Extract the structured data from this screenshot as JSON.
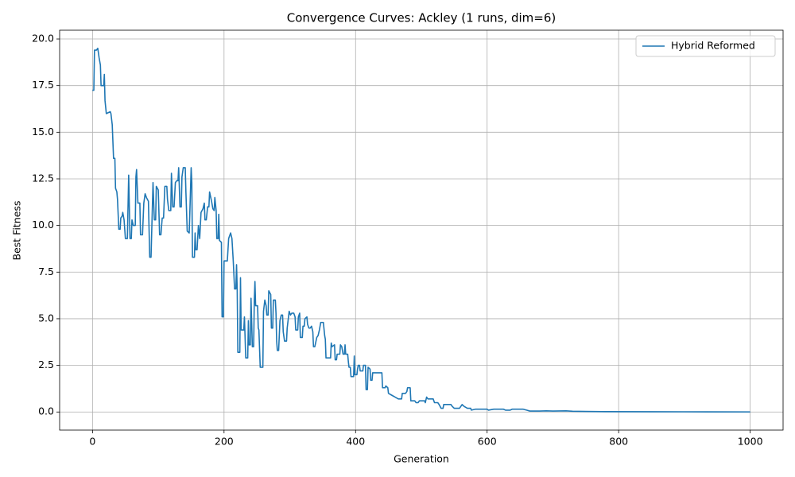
{
  "chart_data": {
    "type": "line",
    "title": "Convergence Curves: Ackley (1 runs, dim=6)",
    "xlabel": "Generation",
    "ylabel": "Best Fitness",
    "x": [
      0,
      2,
      3,
      6,
      8,
      10,
      12,
      13,
      17,
      18,
      19,
      21,
      27,
      28,
      30,
      32,
      34,
      35,
      37,
      38,
      40,
      42,
      43,
      45,
      46,
      48,
      50,
      53,
      55,
      57,
      59,
      60,
      62,
      65,
      66,
      67,
      69,
      72,
      73,
      76,
      78,
      80,
      82,
      85,
      87,
      89,
      92,
      94,
      96,
      97,
      100,
      102,
      104,
      106,
      108,
      110,
      113,
      114,
      116,
      119,
      120,
      122,
      124,
      126,
      128,
      130,
      131,
      133,
      135,
      136,
      138,
      141,
      142,
      144,
      147,
      148,
      150,
      151,
      152,
      155,
      156,
      157,
      159,
      161,
      163,
      165,
      168,
      170,
      171,
      173,
      175,
      177,
      178,
      181,
      183,
      185,
      186,
      188,
      189,
      191,
      192,
      193,
      196,
      197,
      199,
      200,
      205,
      207,
      210,
      212,
      214,
      216,
      218,
      219,
      220,
      221,
      224,
      225,
      226,
      230,
      231,
      233,
      236,
      237,
      238,
      240,
      241,
      243,
      245,
      246,
      247,
      248,
      251,
      252,
      253,
      254,
      255,
      259,
      260,
      262,
      264,
      265,
      267,
      268,
      271,
      272,
      274,
      275,
      278,
      279,
      280,
      281,
      283,
      285,
      287,
      289,
      290,
      292,
      295,
      296,
      299,
      301,
      303,
      306,
      308,
      309,
      312,
      313,
      315,
      316,
      319,
      320,
      322,
      323,
      326,
      327,
      329,
      331,
      333,
      335,
      336,
      338,
      341,
      343,
      345,
      347,
      351,
      353,
      354,
      355,
      362,
      363,
      364,
      368,
      369,
      371,
      372,
      376,
      377,
      379,
      381,
      383,
      384,
      385,
      388,
      389,
      390,
      392,
      393,
      397,
      398,
      399,
      402,
      403,
      404,
      406,
      407,
      411,
      412,
      415,
      416,
      418,
      419,
      422,
      423,
      425,
      426,
      440,
      441,
      445,
      446,
      449,
      450,
      455,
      460,
      465,
      470,
      471,
      476,
      478,
      479,
      483,
      484,
      490,
      492,
      495,
      497,
      505,
      506,
      508,
      510,
      518,
      520,
      525,
      527,
      530,
      533,
      534,
      545,
      547,
      550,
      558,
      560,
      562,
      565,
      570,
      575,
      576,
      582,
      600,
      602,
      610,
      625,
      628,
      635,
      638,
      655,
      660,
      665,
      680,
      690,
      700,
      720,
      730,
      750,
      780,
      850,
      900,
      1000
    ],
    "series": [
      {
        "name": "Hybrid Reformed",
        "color": "#1f77b4",
        "values": [
          17.25,
          17.25,
          19.4,
          19.4,
          19.5,
          19.0,
          18.6,
          17.5,
          17.5,
          18.1,
          16.7,
          16.0,
          16.1,
          16.0,
          15.4,
          13.6,
          13.6,
          12.0,
          11.8,
          11.4,
          9.8,
          9.8,
          10.4,
          10.5,
          10.7,
          10.3,
          9.3,
          9.3,
          12.7,
          9.3,
          9.3,
          10.3,
          10.0,
          10.0,
          12.6,
          13.0,
          11.2,
          11.2,
          9.5,
          9.5,
          11.2,
          11.7,
          11.5,
          11.3,
          8.3,
          8.3,
          12.3,
          10.3,
          10.3,
          12.1,
          11.9,
          9.5,
          9.5,
          10.4,
          10.4,
          12.1,
          12.1,
          11.4,
          10.8,
          10.8,
          12.8,
          11.0,
          11.0,
          12.3,
          12.4,
          12.4,
          13.1,
          11.0,
          11.0,
          12.6,
          13.1,
          13.1,
          11.8,
          9.7,
          9.6,
          10.7,
          13.1,
          12.3,
          8.3,
          8.3,
          9.6,
          8.7,
          8.7,
          10.0,
          9.3,
          10.7,
          10.9,
          11.2,
          10.3,
          10.3,
          11.0,
          11.0,
          11.8,
          11.3,
          10.9,
          10.8,
          11.5,
          10.8,
          9.3,
          9.3,
          10.6,
          9.2,
          9.1,
          5.1,
          5.1,
          8.1,
          8.1,
          9.3,
          9.6,
          9.3,
          8.1,
          6.6,
          6.6,
          7.9,
          6.6,
          3.2,
          3.2,
          7.2,
          4.4,
          4.4,
          5.1,
          2.9,
          2.9,
          4.9,
          3.6,
          3.6,
          6.1,
          3.5,
          3.5,
          6.0,
          7.0,
          5.7,
          5.7,
          4.5,
          4.4,
          3.4,
          2.4,
          2.4,
          5.4,
          6.0,
          5.7,
          5.2,
          5.2,
          6.5,
          6.3,
          4.5,
          4.5,
          6.0,
          6.0,
          5.3,
          3.8,
          3.3,
          3.3,
          4.9,
          5.2,
          5.2,
          4.3,
          3.8,
          3.8,
          4.5,
          5.4,
          5.2,
          5.3,
          5.3,
          5.1,
          4.4,
          4.4,
          5.1,
          5.3,
          4.0,
          4.0,
          4.6,
          4.6,
          5.0,
          5.1,
          4.7,
          4.5,
          4.5,
          4.6,
          4.3,
          3.5,
          3.5,
          4.0,
          4.1,
          4.4,
          4.8,
          4.8,
          4.1,
          3.9,
          2.9,
          2.9,
          3.7,
          3.5,
          3.6,
          2.8,
          2.8,
          3.1,
          3.1,
          3.6,
          3.5,
          3.1,
          3.1,
          3.6,
          3.1,
          3.1,
          2.7,
          2.4,
          2.4,
          1.9,
          1.9,
          3.0,
          2.0,
          2.0,
          2.3,
          2.5,
          2.5,
          2.2,
          2.2,
          2.5,
          2.5,
          1.2,
          1.2,
          2.4,
          2.3,
          1.7,
          1.7,
          2.1,
          2.1,
          1.3,
          1.3,
          1.4,
          1.3,
          1.0,
          0.9,
          0.8,
          0.7,
          0.7,
          1.0,
          1.0,
          1.1,
          1.3,
          1.3,
          0.6,
          0.6,
          0.5,
          0.5,
          0.6,
          0.6,
          0.5,
          0.8,
          0.7,
          0.7,
          0.5,
          0.5,
          0.4,
          0.2,
          0.2,
          0.4,
          0.4,
          0.3,
          0.2,
          0.2,
          0.3,
          0.4,
          0.3,
          0.2,
          0.2,
          0.1,
          0.15,
          0.15,
          0.1,
          0.15,
          0.15,
          0.1,
          0.1,
          0.15,
          0.15,
          0.1,
          0.05,
          0.05,
          0.06,
          0.05,
          0.06,
          0.04,
          0.03,
          0.02,
          0.015,
          0.01,
          0.005
        ]
      }
    ],
    "xlim": [
      -50,
      1050
    ],
    "ylim": [
      -0.97,
      20.47
    ],
    "xticks": [
      0,
      200,
      400,
      600,
      800,
      1000
    ],
    "yticks": [
      {
        "value": 0,
        "label": "0.0"
      },
      {
        "value": 2.5,
        "label": "2.5"
      },
      {
        "value": 5,
        "label": "5.0"
      },
      {
        "value": 7.5,
        "label": "7.5"
      },
      {
        "value": 10,
        "label": "10.0"
      },
      {
        "value": 12.5,
        "label": "12.5"
      },
      {
        "value": 15,
        "label": "15.0"
      },
      {
        "value": 17.5,
        "label": "17.5"
      },
      {
        "value": 20,
        "label": "20.0"
      }
    ],
    "grid": true,
    "legend": "upper right"
  }
}
